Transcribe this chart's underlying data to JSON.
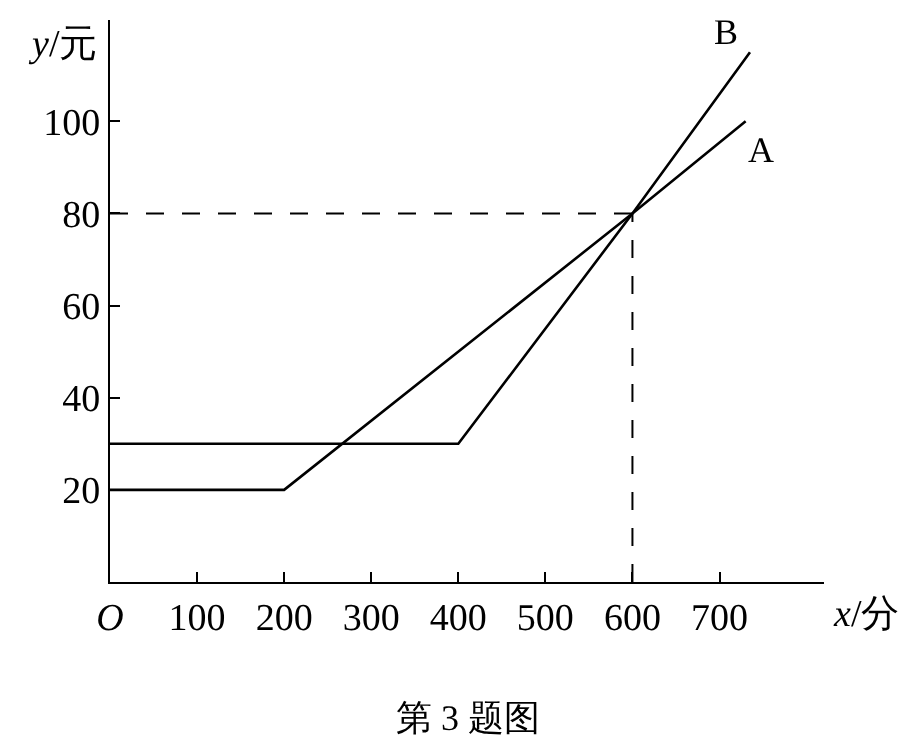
{
  "chart_data": {
    "type": "line",
    "xlabel": "x/分",
    "ylabel": "y/元",
    "annotations": [
      "第 3 题图"
    ],
    "xlim": [
      0,
      820
    ],
    "ylim": [
      0,
      122
    ],
    "xticks": [
      {
        "value": 0,
        "label": "O"
      },
      100,
      200,
      300,
      400,
      500,
      600,
      700
    ],
    "yticks": [
      20,
      40,
      60,
      80,
      100
    ],
    "legend": false,
    "marker": "none",
    "line_style": "solid",
    "ref_lines": [
      {
        "axis": "y",
        "value": 80,
        "label": null,
        "color": "#000000",
        "line_style": "dashed"
      },
      {
        "axis": "x",
        "value": 600,
        "label": null,
        "color": "#000000",
        "line_style": "dashed"
      }
    ],
    "series": [
      {
        "name": "A",
        "color": "#000000",
        "x": [
          0,
          200,
          600,
          730
        ],
        "values": [
          20,
          20,
          80,
          100
        ]
      },
      {
        "name": "B",
        "color": "#000000",
        "x": [
          0,
          400,
          600,
          735
        ],
        "values": [
          30,
          30,
          80,
          115
        ]
      }
    ]
  }
}
